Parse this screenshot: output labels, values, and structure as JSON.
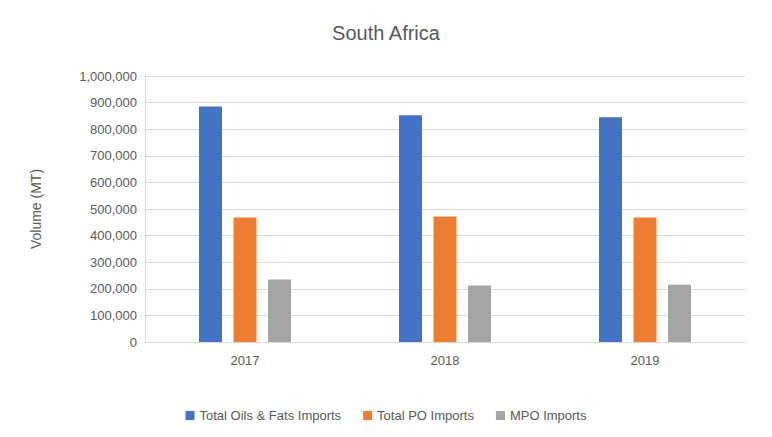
{
  "chart_data": {
    "type": "bar",
    "title": "South Africa",
    "categories": [
      "2017",
      "2018",
      "2019"
    ],
    "y_label": "Volume (MT)",
    "series": [
      {
        "name": "Total Oils & Fats Imports",
        "color": "#4472C4",
        "values": [
          885000,
          852000,
          845000
        ]
      },
      {
        "name": "Total PO Imports",
        "color": "#ED7D31",
        "values": [
          468000,
          472000,
          468000
        ]
      },
      {
        "name": "MPO Imports",
        "color": "#A5A5A5",
        "values": [
          235000,
          212000,
          215000
        ]
      }
    ],
    "ylim": [
      0,
      1000000
    ],
    "yticks": [
      0,
      {
        "value": 100000,
        "label": "100,000"
      },
      {
        "value": 200000,
        "label": "200,000"
      },
      {
        "value": 300000,
        "label": "300,000"
      },
      {
        "value": 400000,
        "label": "400,000"
      },
      {
        "value": 500000,
        "label": "500,000"
      },
      {
        "value": 600000,
        "label": "600,000"
      },
      {
        "value": 700000,
        "label": "700,000"
      },
      {
        "value": 800000,
        "label": "800,000"
      },
      {
        "value": 900000,
        "label": "900,000"
      },
      {
        "value": 1000000,
        "label": "1,000,000"
      }
    ],
    "grid": true,
    "legend": "bottom"
  }
}
